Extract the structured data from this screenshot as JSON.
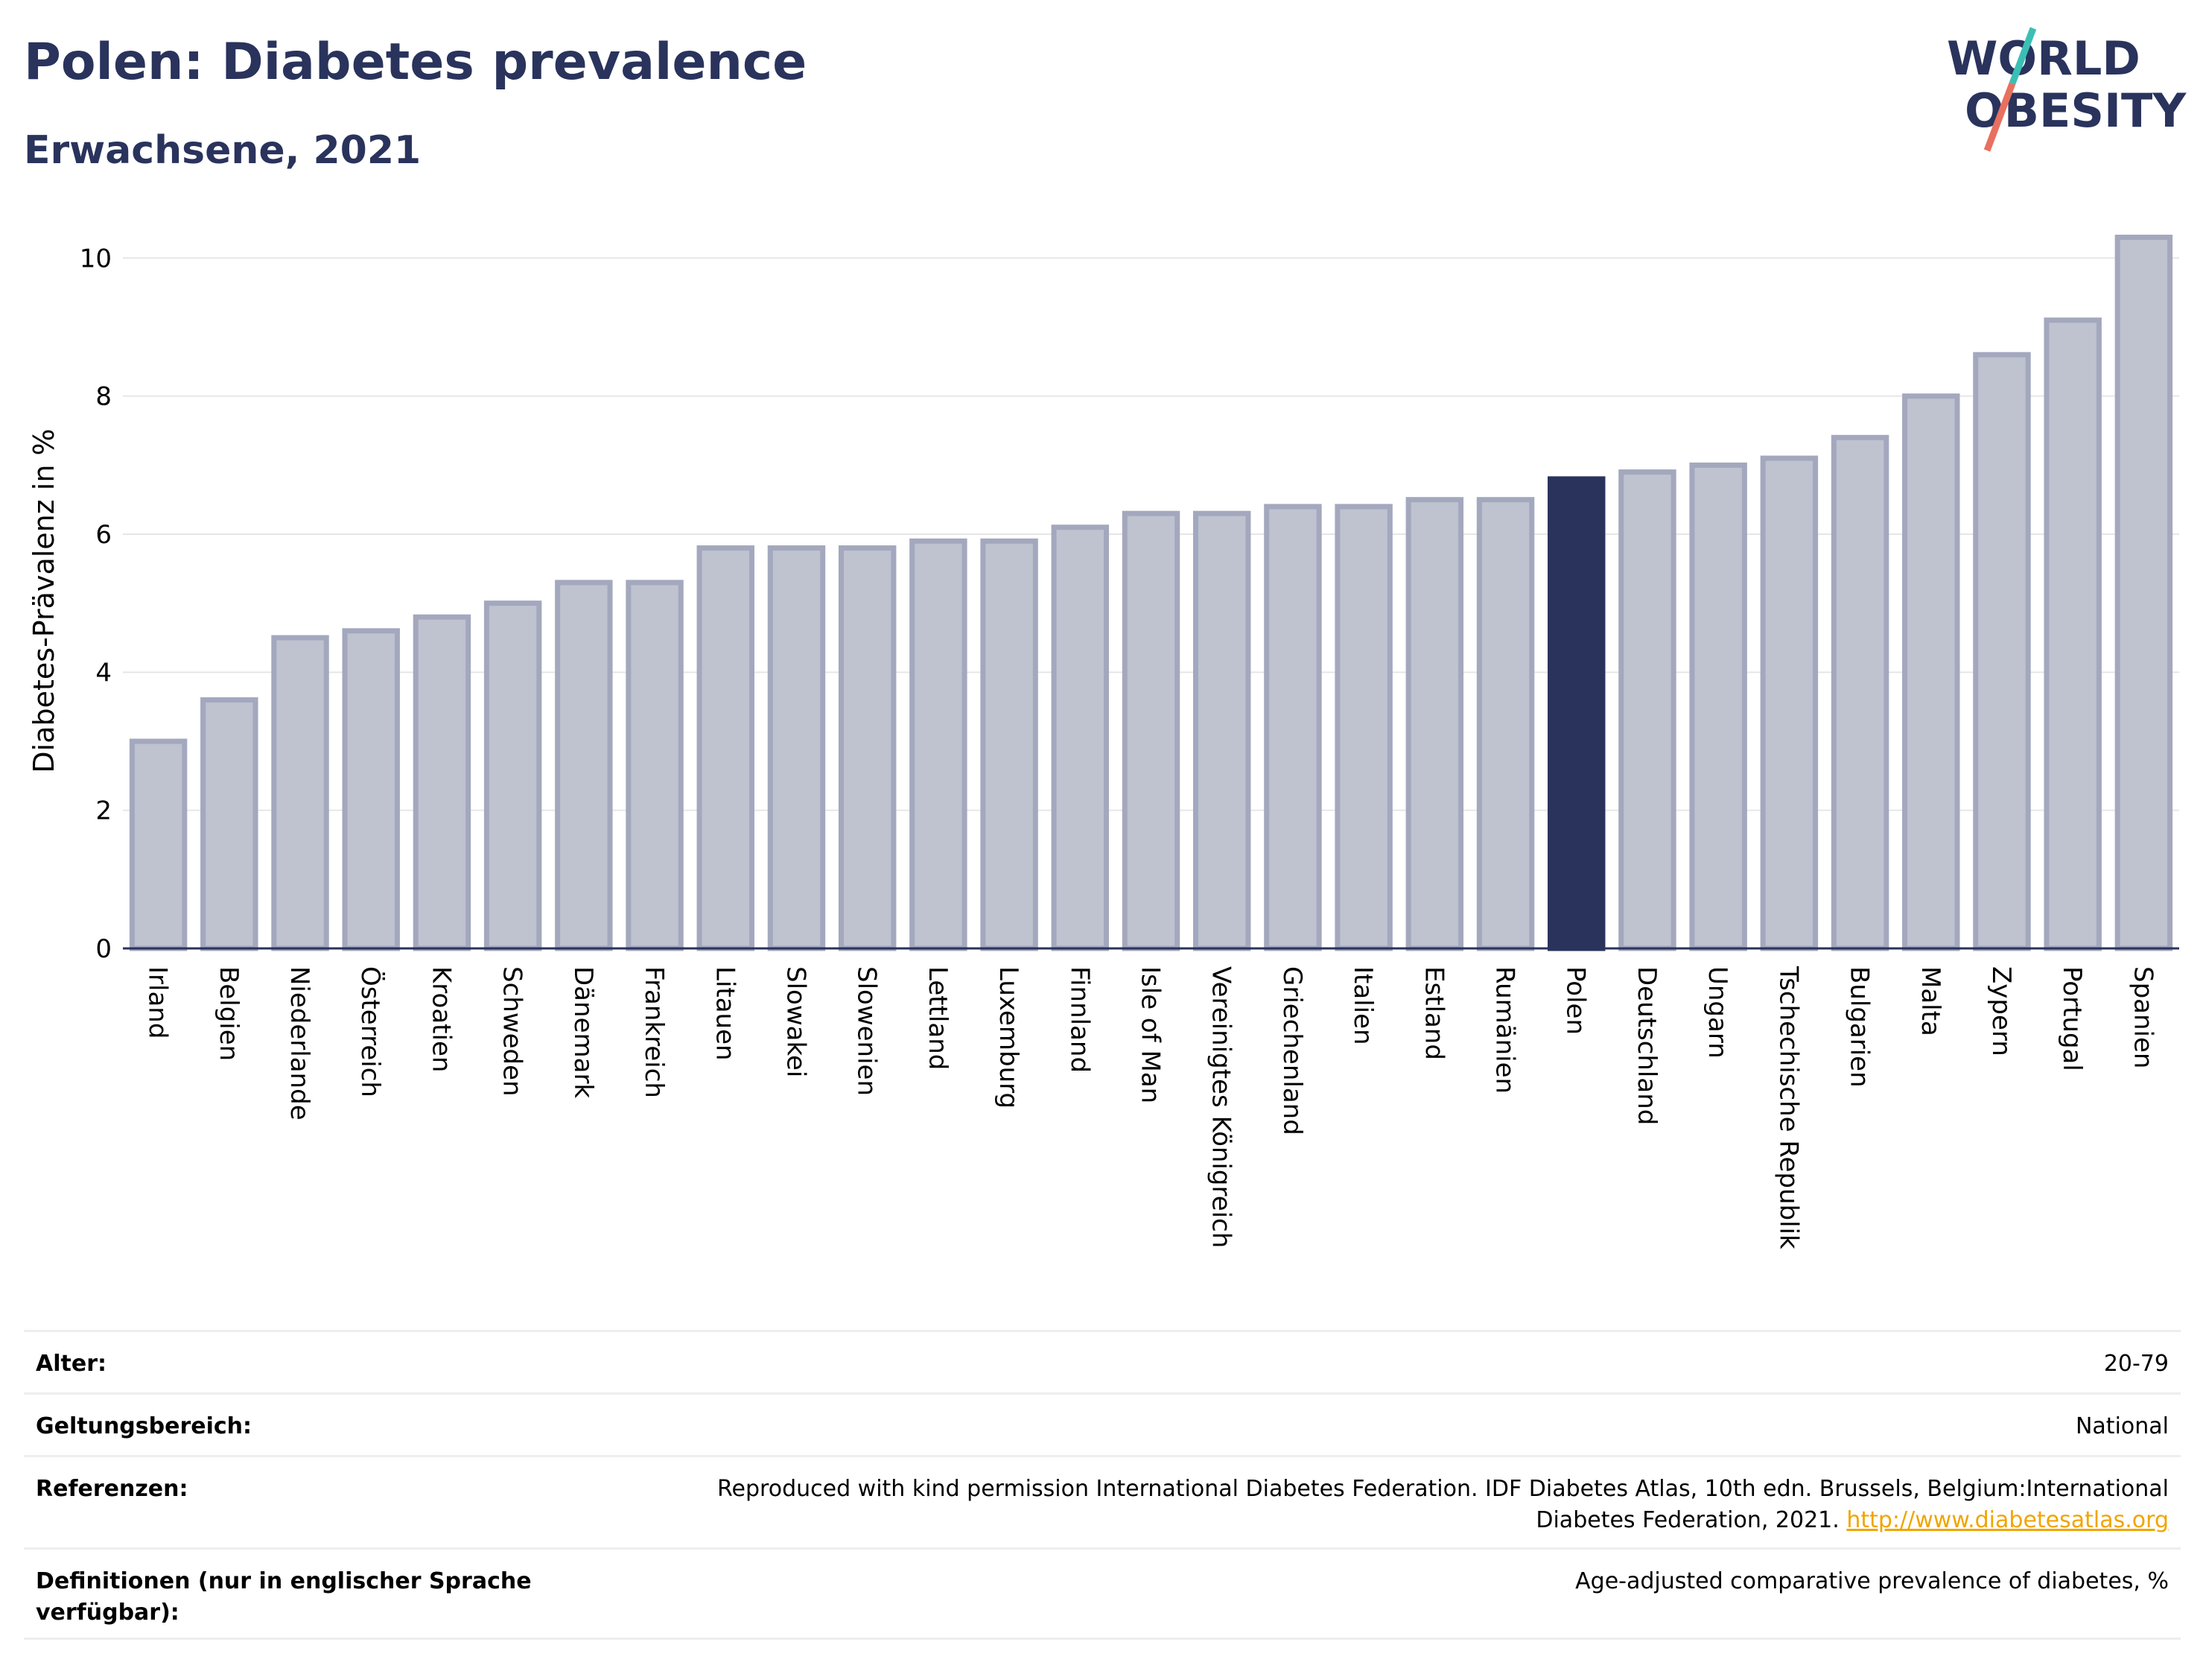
{
  "title": "Polen: Diabetes prevalence",
  "subtitle": "Erwachsene, 2021",
  "logo": {
    "line1": "WORLD",
    "line2": "OBESITY",
    "accent_teal": "#3bbfb5",
    "accent_red": "#e8705f"
  },
  "colors": {
    "bar_default": "#bfc2cf",
    "bar_stroke": "#a3a8be",
    "bar_highlight": "#29335c",
    "text": "#29335c"
  },
  "chart_data": {
    "type": "bar",
    "ylabel": "Diabetes-Prävalenz in %",
    "ylim": [
      0,
      10.5
    ],
    "yticks": [
      0,
      2,
      4,
      6,
      8,
      10
    ],
    "grid": true,
    "highlight": "Polen",
    "categories": [
      "Irland",
      "Belgien",
      "Niederlande",
      "Österreich",
      "Kroatien",
      "Schweden",
      "Dänemark",
      "Frankreich",
      "Litauen",
      "Slowakei",
      "Slowenien",
      "Lettland",
      "Luxemburg",
      "Finnland",
      "Isle of Man",
      "Vereinigtes Königreich",
      "Griechenland",
      "Italien",
      "Estland",
      "Rumänien",
      "Polen",
      "Deutschland",
      "Ungarn",
      "Tschechische Republik",
      "Bulgarien",
      "Malta",
      "Zypern",
      "Portugal",
      "Spanien"
    ],
    "values": [
      3.0,
      3.6,
      4.5,
      4.6,
      4.8,
      5.0,
      5.3,
      5.3,
      5.8,
      5.8,
      5.8,
      5.9,
      5.9,
      6.1,
      6.3,
      6.3,
      6.4,
      6.4,
      6.5,
      6.5,
      6.8,
      6.9,
      7.0,
      7.1,
      7.4,
      8.0,
      8.6,
      9.1,
      10.3
    ]
  },
  "meta": {
    "age_label": "Alter:",
    "age_value": "20-79",
    "scope_label": "Geltungsbereich:",
    "scope_value": "National",
    "refs_label": "Referenzen:",
    "refs_line1": "Reproduced with kind permission International Diabetes Federation.  IDF Diabetes Atlas, 10th edn. Brussels, Belgium:International",
    "refs_line2": "Diabetes Federation, 2021.",
    "refs_link": "http://www.diabetesatlas.org",
    "defs_label": "Definitionen (nur in englischer Sprache verfügbar):",
    "defs_value": "Age-adjusted comparative prevalence of diabetes, %"
  }
}
